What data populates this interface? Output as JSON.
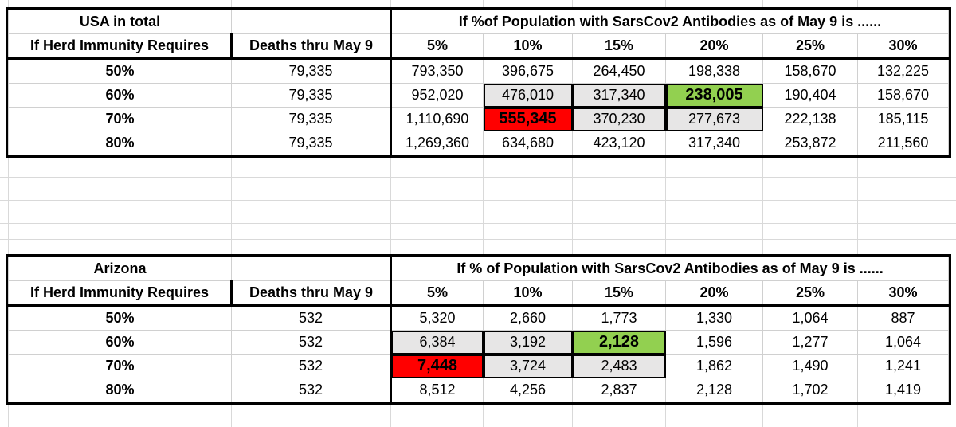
{
  "tables": [
    {
      "id": "usa",
      "region_label": "USA in total",
      "scenario_title": "If %of Population with  SarsCov2 Antibodies as of May 9 is ......",
      "col0_header": "If Herd Immunity Requires",
      "col1_header": "Deaths thru May 9",
      "pct_headers": [
        "5%",
        "10%",
        "15%",
        "20%",
        "25%",
        "30%"
      ],
      "rows": [
        {
          "threshold": "50%",
          "deaths": "79,335",
          "values": [
            "793,350",
            "396,675",
            "264,450",
            "198,338",
            "158,670",
            "132,225"
          ]
        },
        {
          "threshold": "60%",
          "deaths": "79,335",
          "values": [
            "952,020",
            "476,010",
            "317,340",
            "238,005",
            "190,404",
            "158,670"
          ]
        },
        {
          "threshold": "70%",
          "deaths": "79,335",
          "values": [
            "1,110,690",
            "555,345",
            "370,230",
            "277,673",
            "222,138",
            "185,115"
          ]
        },
        {
          "threshold": "80%",
          "deaths": "79,335",
          "values": [
            "1,269,360",
            "634,680",
            "423,120",
            "317,340",
            "253,872",
            "211,560"
          ]
        }
      ]
    },
    {
      "id": "arizona",
      "region_label": "Arizona",
      "scenario_title": "If % of Population with  SarsCov2 Antibodies as of May 9 is ......",
      "col0_header": "If Herd Immunity Requires",
      "col1_header": "Deaths thru May 9",
      "pct_headers": [
        "5%",
        "10%",
        "15%",
        "20%",
        "25%",
        "30%"
      ],
      "rows": [
        {
          "threshold": "50%",
          "deaths": "532",
          "values": [
            "5,320",
            "2,660",
            "1,773",
            "1,330",
            "1,064",
            "887"
          ]
        },
        {
          "threshold": "60%",
          "deaths": "532",
          "values": [
            "6,384",
            "3,192",
            "2,128",
            "1,596",
            "1,277",
            "1,064"
          ]
        },
        {
          "threshold": "70%",
          "deaths": "532",
          "values": [
            "7,448",
            "3,724",
            "2,483",
            "1,862",
            "1,490",
            "1,241"
          ]
        },
        {
          "threshold": "80%",
          "deaths": "532",
          "values": [
            "8,512",
            "4,256",
            "2,837",
            "2,128",
            "1,702",
            "1,419"
          ]
        }
      ]
    }
  ],
  "highlight_colors": {
    "red": "#ff0000",
    "green": "#92d050",
    "grey": "#e7e6e6"
  }
}
